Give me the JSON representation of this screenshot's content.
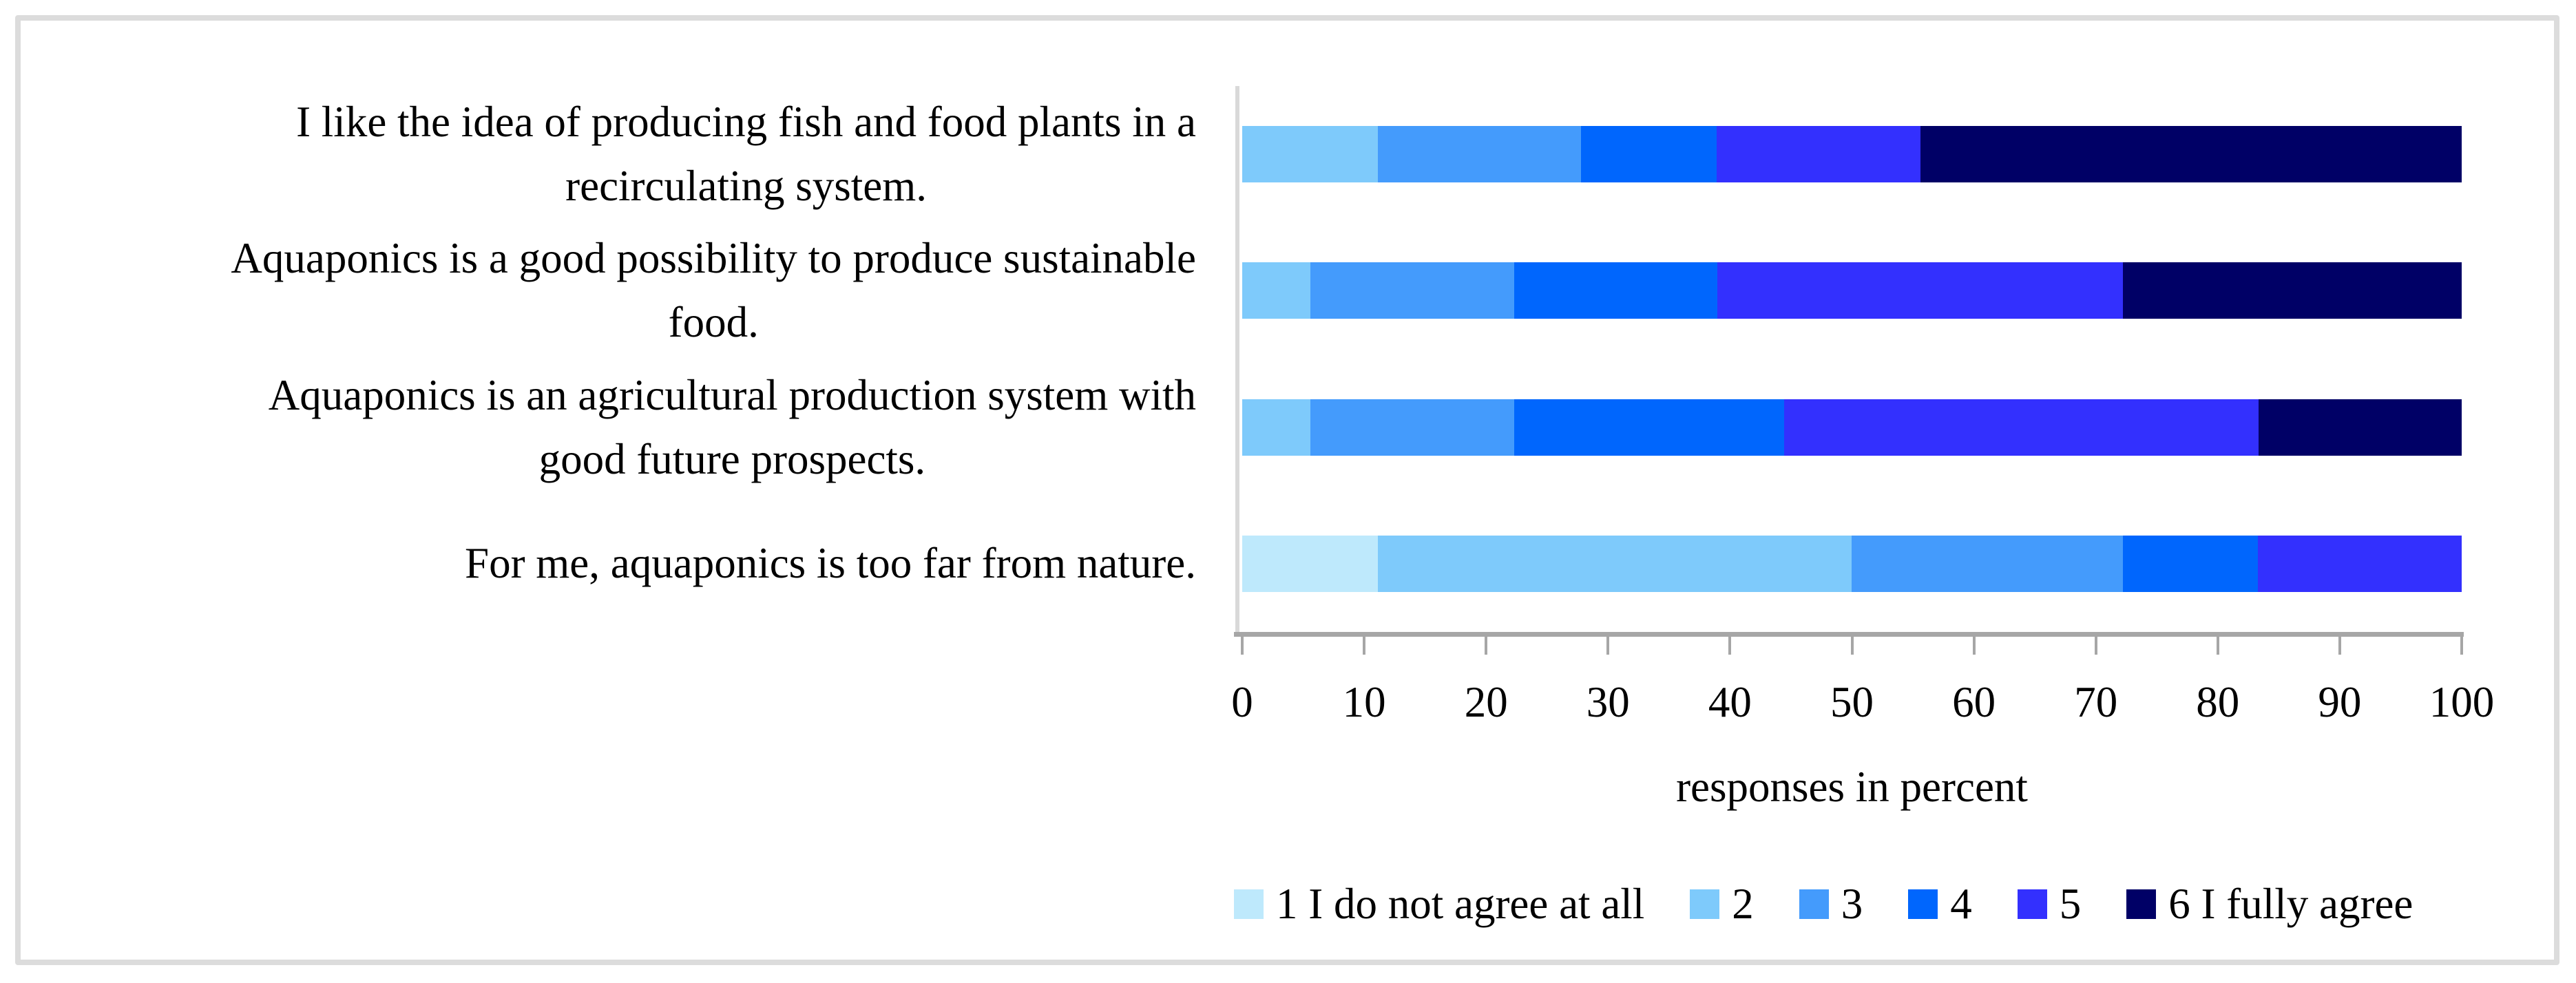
{
  "chart_data": {
    "type": "bar",
    "stacked": true,
    "orientation": "horizontal",
    "categories": [
      "I like the idea of producing fish and food plants in a\nrecirculating system.",
      "Aquaponics is a good possibility to produce sustainable\nfood.",
      "Aquaponics is an agricultural production system with\ngood future prospects.",
      "For me, aquaponics is too far from nature."
    ],
    "series": [
      {
        "name": "1 I do not agree at all",
        "color": "#BEE9FC",
        "values": [
          0,
          0,
          0,
          11.1
        ]
      },
      {
        "name": "2",
        "color": "#7ECAFB",
        "values": [
          11.1,
          5.6,
          5.6,
          38.9
        ]
      },
      {
        "name": "3",
        "color": "#449BFC",
        "values": [
          16.7,
          16.7,
          16.7,
          22.2
        ]
      },
      {
        "name": "4",
        "color": "#0066FD",
        "values": [
          11.1,
          16.7,
          22.2,
          11.1
        ]
      },
      {
        "name": "5",
        "color": "#3330FE",
        "values": [
          16.7,
          33.3,
          38.9,
          16.7
        ]
      },
      {
        "name": "6 I fully agree",
        "color": "#000066",
        "values": [
          44.4,
          27.8,
          16.7,
          0
        ]
      }
    ],
    "xlabel": "responses in percent",
    "xticks": [
      0,
      10,
      20,
      30,
      40,
      50,
      60,
      70,
      80,
      90,
      100
    ],
    "xlim": [
      0,
      100
    ],
    "legend_position": "bottom",
    "grid": false
  }
}
